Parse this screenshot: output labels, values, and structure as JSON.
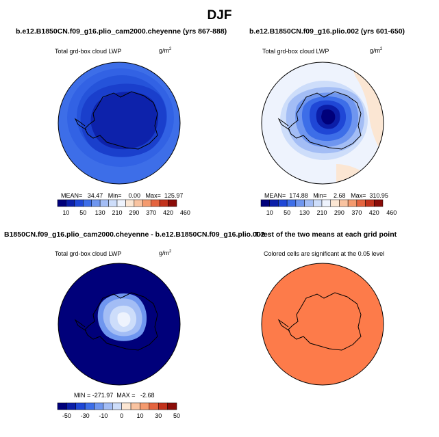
{
  "title": "DJF",
  "panels": [
    {
      "title": "b.e12.B1850CN.f09_g16.plio_cam2000.cheyenne (yrs 867-888)",
      "var_label": "Total grd-box cloud LWP",
      "units": "g/m",
      "units_exp": "2",
      "stats": "MEAN=   34.47   Min=    0.00   Max=  125.97",
      "colorbar_ticks": [
        "10",
        "50",
        "130",
        "210",
        "290",
        "370",
        "420",
        "460"
      ]
    },
    {
      "title": "b.e12.B1850CN.f09_g16.plio.002 (yrs 601-650)",
      "var_label": "Total grd-box cloud LWP",
      "units": "g/m",
      "units_exp": "2",
      "stats": "MEAN=  174.88   Min=    2.68   Max=  310.95",
      "colorbar_ticks": [
        "10",
        "50",
        "130",
        "210",
        "290",
        "370",
        "420",
        "460"
      ]
    },
    {
      "title": "B1850CN.f09_g16.plio_cam2000.cheyenne - b.e12.B1850CN.f09_g16.plio.002",
      "var_label": "Total grd-box cloud LWP",
      "units": "g/m",
      "units_exp": "2",
      "stats": "MIN = -271.97  MAX =   -2.68",
      "colorbar_ticks": [
        "-50",
        "-30",
        "-10",
        "0",
        "10",
        "30",
        "50"
      ]
    },
    {
      "title": "T-test of the two means at each grid point",
      "var_label": "Colored cells are significant at the 0.05 level"
    }
  ],
  "colors": {
    "abs_scale": [
      "#00007a",
      "#0b1ea8",
      "#1f47d6",
      "#3d6ee8",
      "#6f96ef",
      "#a3bdf5",
      "#cdddfa",
      "#eef3fd",
      "#fbe6d3",
      "#f9c3a0",
      "#f49a6e",
      "#e4643f",
      "#c2321c",
      "#8a0c08"
    ],
    "diff_scale": [
      "#00007a",
      "#0b1ea8",
      "#1f47d6",
      "#3d6ee8",
      "#6f96ef",
      "#a3bdf5",
      "#cdddfa",
      "#fbe6d3",
      "#f9c3a0",
      "#f49a6e",
      "#e4643f",
      "#c2321c",
      "#8a0c08"
    ],
    "ttest_fill": "#fd7b4a",
    "coast": "#000000"
  }
}
